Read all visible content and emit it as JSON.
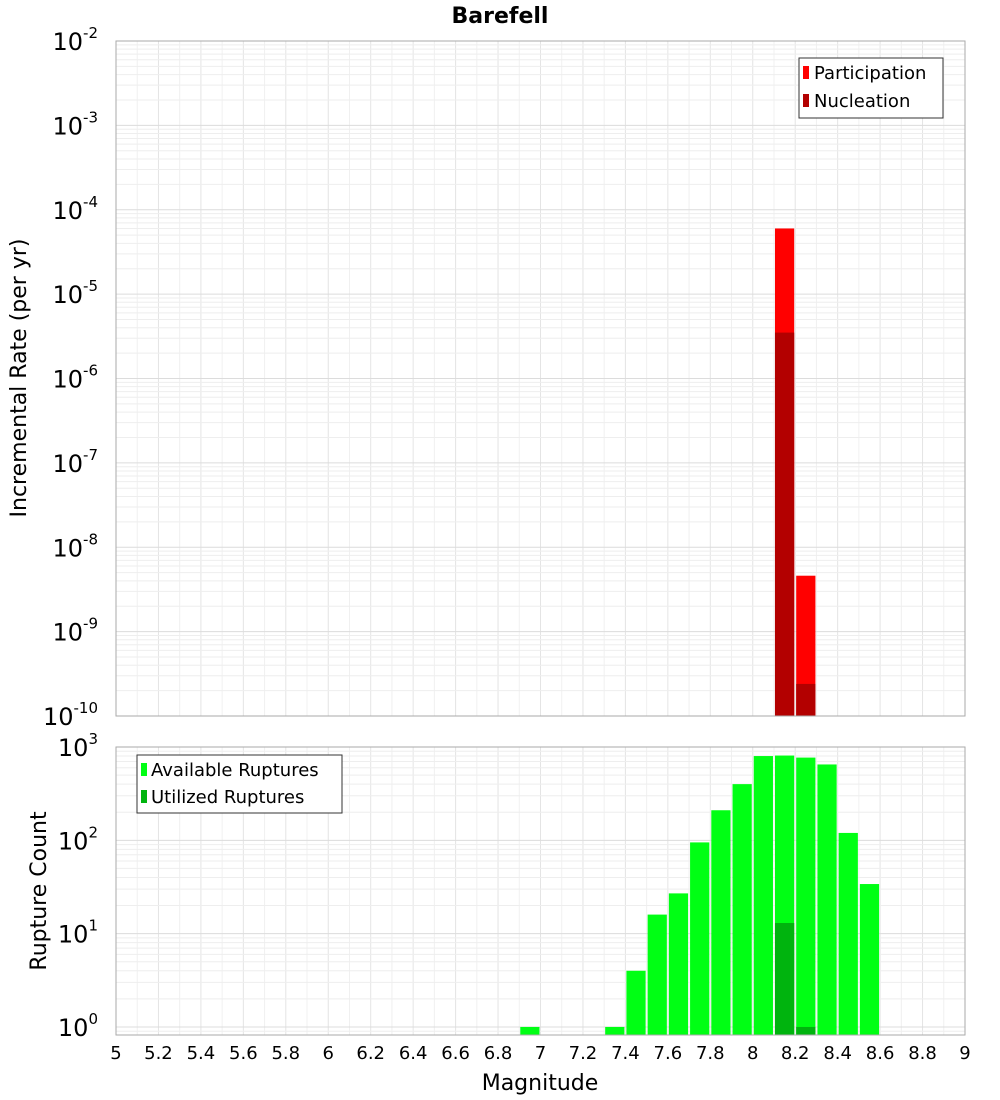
{
  "chart_data": [
    {
      "type": "bar",
      "title": "Barefell",
      "xlabel": "Magnitude",
      "ylabel": "Incremental Rate (per yr)",
      "yscale": "log",
      "ylim": [
        1e-10,
        0.01
      ],
      "xlim": [
        5,
        9
      ],
      "x_ticks": [
        "5",
        "5.2",
        "5.4",
        "5.6",
        "5.8",
        "6",
        "6.2",
        "6.4",
        "6.6",
        "6.8",
        "7",
        "7.2",
        "7.4",
        "7.6",
        "7.8",
        "8",
        "8.2",
        "8.4",
        "8.6",
        "8.8",
        "9"
      ],
      "y_ticks": [
        {
          "base": "10",
          "exp": "-10"
        },
        {
          "base": "10",
          "exp": "-9"
        },
        {
          "base": "10",
          "exp": "-8"
        },
        {
          "base": "10",
          "exp": "-7"
        },
        {
          "base": "10",
          "exp": "-6"
        },
        {
          "base": "10",
          "exp": "-5"
        },
        {
          "base": "10",
          "exp": "-4"
        },
        {
          "base": "10",
          "exp": "-3"
        },
        {
          "base": "10",
          "exp": "-2"
        }
      ],
      "bin_width": 0.1,
      "grid": true,
      "legend_position": "top-right",
      "series": [
        {
          "name": "Participation",
          "color": "#ff0000",
          "x": [
            8.15,
            8.25
          ],
          "values": [
            6e-05,
            4.6e-09
          ]
        },
        {
          "name": "Nucleation",
          "color": "#b30000",
          "x": [
            8.15,
            8.25
          ],
          "values": [
            3.5e-06,
            2.4e-10
          ]
        }
      ]
    },
    {
      "type": "bar",
      "title": "",
      "xlabel": "Magnitude",
      "ylabel": "Rupture Count",
      "yscale": "log",
      "ylim": [
        0.82,
        1000
      ],
      "xlim": [
        5,
        9
      ],
      "y_ticks": [
        {
          "base": "10",
          "exp": "0"
        },
        {
          "base": "10",
          "exp": "1"
        },
        {
          "base": "10",
          "exp": "2"
        },
        {
          "base": "10",
          "exp": "3"
        }
      ],
      "bin_width": 0.1,
      "grid": true,
      "legend_position": "top-left",
      "series": [
        {
          "name": "Available Ruptures",
          "color": "#00ff14",
          "x": [
            6.95,
            7.35,
            7.45,
            7.55,
            7.65,
            7.75,
            7.85,
            7.95,
            8.05,
            8.15,
            8.25,
            8.35,
            8.45,
            8.55
          ],
          "values": [
            1,
            1,
            4,
            16,
            27,
            95,
            210,
            400,
            800,
            810,
            770,
            650,
            120,
            34
          ]
        },
        {
          "name": "Utilized Ruptures",
          "color": "#00b40e",
          "x": [
            8.15,
            8.25
          ],
          "values": [
            13,
            1
          ]
        }
      ]
    }
  ]
}
